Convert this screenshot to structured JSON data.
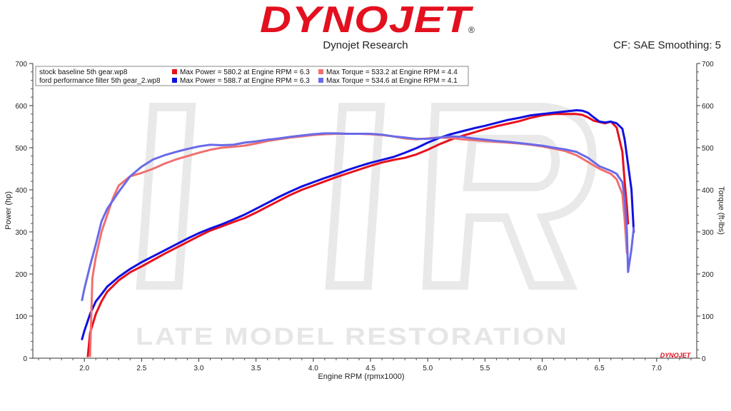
{
  "brand": {
    "logo_text": "DYNOJET",
    "registered_mark": "®",
    "mini_logo_text": "DYNOJET"
  },
  "header": {
    "subtitle": "Dynojet Research",
    "cf_info": "CF: SAE Smoothing: 5"
  },
  "watermark": {
    "text": "LATE MODEL RESTORATION"
  },
  "colors": {
    "logo_red": "#e3101f",
    "stock": "#e8101c",
    "stock_light": "#f07070",
    "filter": "#1010e0",
    "filter_light": "#6a6ae8",
    "axis": "#333333",
    "watermark": "#e6e6e6"
  },
  "chart_data": {
    "type": "line",
    "xlabel": "Engine RPM (rpmx1000)",
    "ylabel_left": "Power (hp)",
    "ylabel_right": "Torque (ft-lbs)",
    "xlim": [
      1.55,
      7.35
    ],
    "ylim": [
      0,
      700
    ],
    "x_ticks": [
      "2.0",
      "2.5",
      "3.0",
      "3.5",
      "4.0",
      "4.5",
      "5.0",
      "5.5",
      "6.0",
      "6.5",
      "7.0"
    ],
    "y_ticks_left": [
      "0",
      "100",
      "200",
      "300",
      "400",
      "500",
      "600",
      "700"
    ],
    "y_ticks_right": [
      "0",
      "100",
      "200",
      "300",
      "400",
      "500",
      "600",
      "700"
    ],
    "legend": {
      "placement": "top-left",
      "rows": [
        {
          "file": "stock baseline 5th gear.wp8",
          "max_power": "Max Power = 580.2 at Engine RPM = 6.3",
          "max_torque": "Max Torque = 533.2 at Engine RPM = 4.4"
        },
        {
          "file": "ford performance filter 5th gear_2.wp8",
          "max_power": "Max Power = 588.7 at Engine RPM = 6.3",
          "max_torque": "Max Torque = 534.6 at Engine RPM = 4.1"
        }
      ]
    },
    "series": [
      {
        "name": "stock baseline 5th gear.wp8",
        "measure": "power",
        "color": "#e8101c",
        "x": [
          2.03,
          2.05,
          2.1,
          2.15,
          2.2,
          2.3,
          2.4,
          2.5,
          2.6,
          2.7,
          2.8,
          2.9,
          3.0,
          3.1,
          3.2,
          3.3,
          3.4,
          3.5,
          3.6,
          3.7,
          3.8,
          3.9,
          4.0,
          4.1,
          4.2,
          4.3,
          4.4,
          4.5,
          4.6,
          4.7,
          4.8,
          4.9,
          5.0,
          5.1,
          5.2,
          5.3,
          5.4,
          5.5,
          5.6,
          5.7,
          5.8,
          5.9,
          6.0,
          6.1,
          6.2,
          6.3,
          6.35,
          6.4,
          6.45,
          6.5,
          6.55,
          6.6,
          6.65,
          6.7,
          6.72,
          6.74,
          6.75
        ],
        "y": [
          5,
          60,
          105,
          135,
          158,
          185,
          204,
          218,
          233,
          248,
          262,
          276,
          290,
          303,
          313,
          323,
          333,
          346,
          360,
          374,
          388,
          400,
          410,
          420,
          430,
          439,
          448,
          457,
          465,
          471,
          476,
          484,
          495,
          508,
          519,
          528,
          536,
          544,
          551,
          557,
          563,
          571,
          577,
          580,
          580,
          580,
          578,
          572,
          564,
          561,
          558,
          562,
          548,
          490,
          420,
          360,
          320
        ]
      },
      {
        "name": "ford performance filter 5th gear_2.wp8",
        "measure": "power",
        "color": "#1010e0",
        "x": [
          1.98,
          2.0,
          2.05,
          2.1,
          2.15,
          2.2,
          2.3,
          2.4,
          2.5,
          2.6,
          2.7,
          2.8,
          2.9,
          3.0,
          3.1,
          3.2,
          3.3,
          3.4,
          3.5,
          3.6,
          3.7,
          3.8,
          3.9,
          4.0,
          4.1,
          4.2,
          4.3,
          4.4,
          4.5,
          4.6,
          4.7,
          4.8,
          4.9,
          5.0,
          5.1,
          5.2,
          5.3,
          5.4,
          5.5,
          5.6,
          5.7,
          5.8,
          5.9,
          6.0,
          6.1,
          6.2,
          6.3,
          6.35,
          6.4,
          6.45,
          6.5,
          6.55,
          6.6,
          6.65,
          6.7,
          6.72,
          6.75,
          6.78,
          6.8
        ],
        "y": [
          45,
          65,
          105,
          135,
          152,
          170,
          193,
          212,
          228,
          242,
          256,
          270,
          284,
          297,
          308,
          318,
          329,
          341,
          355,
          369,
          383,
          396,
          408,
          418,
          428,
          437,
          447,
          456,
          464,
          471,
          478,
          488,
          499,
          512,
          523,
          532,
          539,
          546,
          552,
          559,
          566,
          571,
          577,
          580,
          583,
          586,
          589,
          588,
          583,
          572,
          562,
          560,
          562,
          558,
          545,
          520,
          460,
          400,
          300
        ]
      },
      {
        "name": "stock baseline 5th gear.wp8",
        "measure": "torque",
        "color": "#f07070",
        "x": [
          2.05,
          2.07,
          2.1,
          2.15,
          2.2,
          2.25,
          2.3,
          2.4,
          2.5,
          2.6,
          2.7,
          2.8,
          2.9,
          3.0,
          3.1,
          3.2,
          3.3,
          3.4,
          3.5,
          3.6,
          3.7,
          3.8,
          3.9,
          4.0,
          4.1,
          4.2,
          4.3,
          4.4,
          4.5,
          4.6,
          4.7,
          4.8,
          4.9,
          5.0,
          5.1,
          5.2,
          5.3,
          5.4,
          5.5,
          5.6,
          5.7,
          5.8,
          5.9,
          6.0,
          6.1,
          6.2,
          6.3,
          6.4,
          6.5,
          6.6,
          6.65,
          6.7,
          6.72,
          6.74
        ],
        "y": [
          5,
          190,
          240,
          300,
          340,
          380,
          410,
          432,
          440,
          450,
          462,
          472,
          480,
          488,
          495,
          500,
          502,
          505,
          510,
          516,
          520,
          524,
          527,
          530,
          532,
          533,
          533,
          533,
          532,
          530,
          527,
          522,
          520,
          522,
          524,
          523,
          520,
          518,
          516,
          514,
          512,
          510,
          507,
          503,
          498,
          492,
          482,
          466,
          450,
          438,
          425,
          390,
          330,
          250
        ]
      },
      {
        "name": "ford performance filter 5th gear_2.wp8",
        "measure": "torque",
        "color": "#6a6ae8",
        "x": [
          1.98,
          2.0,
          2.05,
          2.1,
          2.15,
          2.2,
          2.3,
          2.4,
          2.5,
          2.6,
          2.7,
          2.8,
          2.9,
          3.0,
          3.1,
          3.2,
          3.3,
          3.4,
          3.5,
          3.6,
          3.7,
          3.8,
          3.9,
          4.0,
          4.1,
          4.2,
          4.3,
          4.4,
          4.5,
          4.6,
          4.7,
          4.8,
          4.9,
          5.0,
          5.1,
          5.2,
          5.3,
          5.4,
          5.5,
          5.6,
          5.7,
          5.8,
          5.9,
          6.0,
          6.1,
          6.2,
          6.3,
          6.4,
          6.5,
          6.6,
          6.65,
          6.7,
          6.72,
          6.74,
          6.75,
          6.78,
          6.8
        ],
        "y": [
          138,
          165,
          220,
          270,
          325,
          355,
          395,
          432,
          455,
          472,
          482,
          490,
          497,
          503,
          507,
          506,
          507,
          512,
          515,
          519,
          522,
          526,
          529,
          532,
          534,
          534,
          533,
          533,
          533,
          531,
          527,
          524,
          521,
          521,
          524,
          527,
          526,
          522,
          519,
          516,
          514,
          511,
          508,
          505,
          500,
          496,
          490,
          476,
          456,
          445,
          438,
          418,
          380,
          300,
          205,
          260,
          310
        ]
      }
    ]
  }
}
